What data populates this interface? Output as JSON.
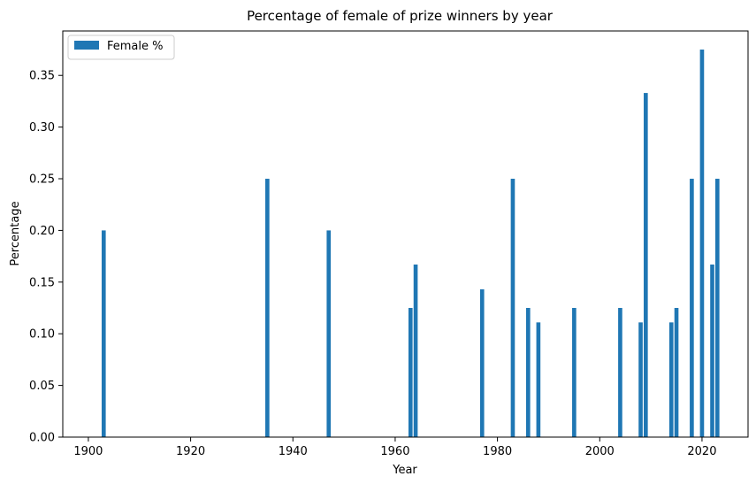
{
  "chart_data": {
    "type": "bar",
    "title": "Percentage of female of prize winners by year",
    "xlabel": "Year",
    "ylabel": "Percentage",
    "xlim": [
      1895,
      2029
    ],
    "ylim": [
      0,
      0.393
    ],
    "xticks": [
      1900,
      1920,
      1940,
      1960,
      1980,
      2000,
      2020
    ],
    "yticks": [
      0.0,
      0.05,
      0.1,
      0.15,
      0.2,
      0.25,
      0.3,
      0.35
    ],
    "ytick_labels": [
      "0.00",
      "0.05",
      "0.10",
      "0.15",
      "0.20",
      "0.25",
      "0.30",
      "0.35"
    ],
    "grid": false,
    "legend_position": "top-left",
    "color": "#1f77b4",
    "series": [
      {
        "name": "Female %",
        "x": [
          1903,
          1935,
          1947,
          1963,
          1964,
          1977,
          1983,
          1986,
          1988,
          1995,
          2004,
          2008,
          2009,
          2014,
          2015,
          2018,
          2020,
          2022,
          2023
        ],
        "values": [
          0.2,
          0.25,
          0.2,
          0.125,
          0.167,
          0.143,
          0.25,
          0.125,
          0.111,
          0.125,
          0.125,
          0.111,
          0.333,
          0.111,
          0.125,
          0.25,
          0.375,
          0.167,
          0.25
        ]
      }
    ]
  }
}
